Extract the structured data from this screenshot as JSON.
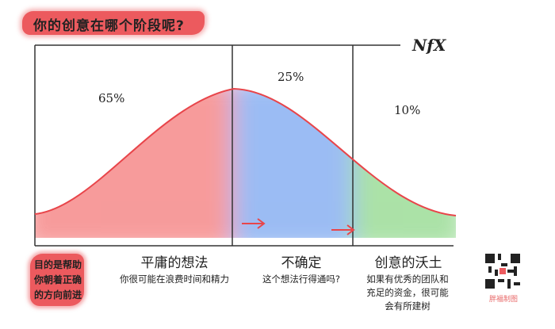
{
  "title": "你的创意在哪个阶段呢?",
  "logo": "NfX",
  "percentages": {
    "mediocre": "65%",
    "uncertain": "25%",
    "fertile": "10%"
  },
  "stages": [
    {
      "label": "平庸的想法",
      "desc": "你很可能在浪费时间和精力",
      "color": "#f47a7a"
    },
    {
      "label": "不确定",
      "desc": "这个想法行得通吗?",
      "color": "#7aa6f0"
    },
    {
      "label": "创意的沃土",
      "desc": "如果有优秀的团队和充足的资金，很可能会有所建树",
      "color": "#8fd88a"
    }
  ],
  "goal_note": "目的是帮助你朝着正确的方向前进",
  "watermark": "胖福制图",
  "accent": "#ec5a5e"
}
